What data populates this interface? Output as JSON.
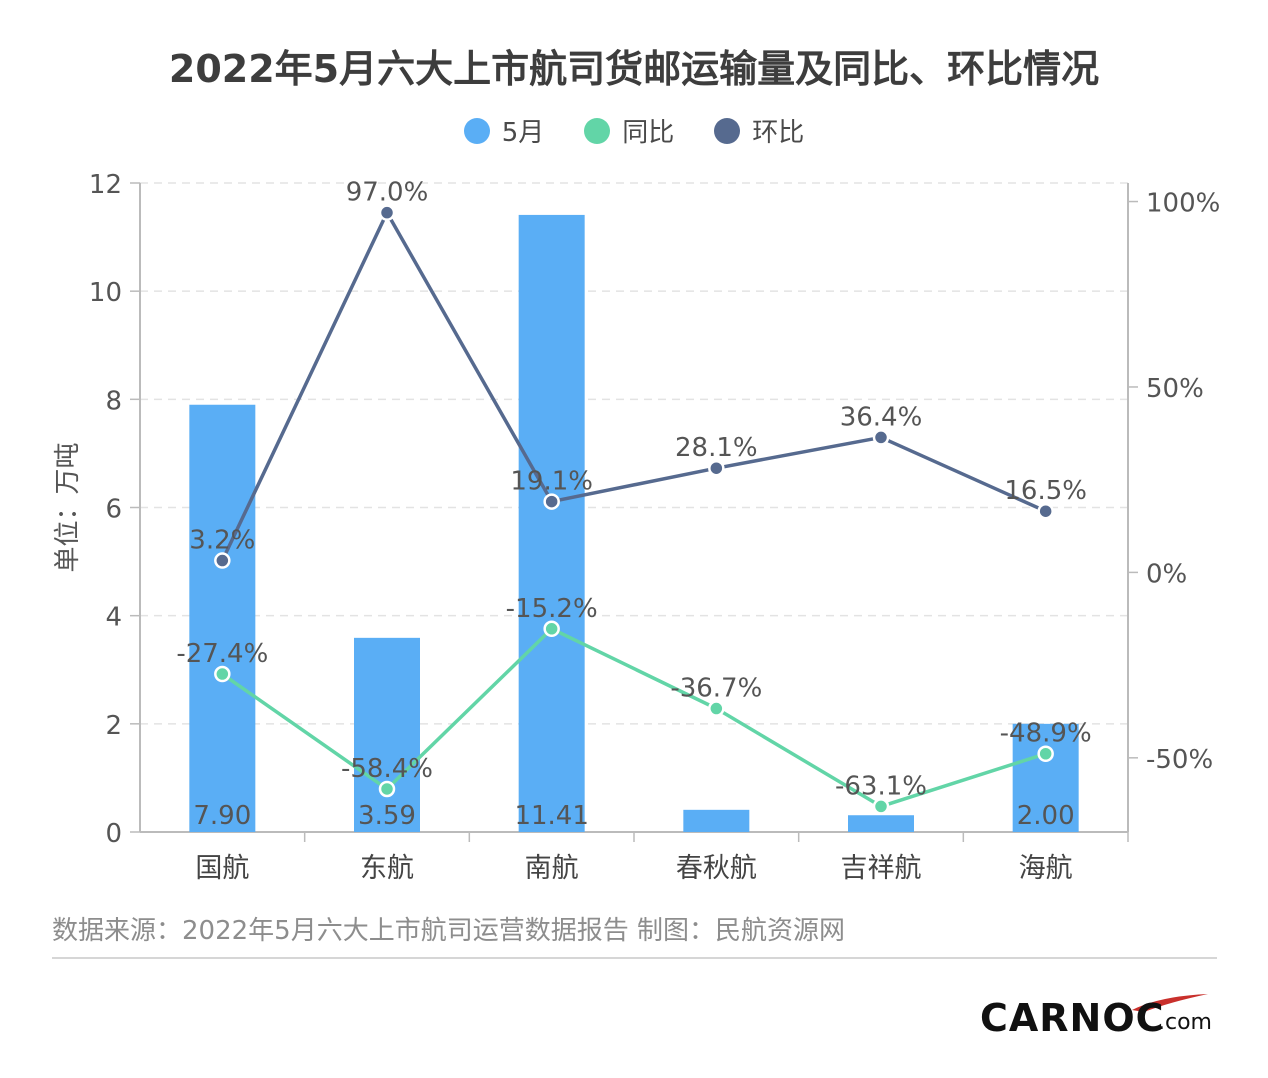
{
  "chart_data": {
    "type": "bar",
    "title": "2022年5月六大上市航司货邮运输量及同比、环比情况",
    "ylabel": "单位：万吨",
    "ylim": [
      0,
      12
    ],
    "y_ticks": [
      "0",
      "2",
      "4",
      "6",
      "8",
      "10",
      "12"
    ],
    "y2lim": [
      -70,
      105
    ],
    "y2_ticks": [
      "100%",
      "50%",
      "0%",
      "-50%"
    ],
    "y2_tick_values": [
      100,
      50,
      0,
      -50
    ],
    "categories": [
      "国航",
      "东航",
      "南航",
      "春秋航",
      "吉祥航",
      "海航"
    ],
    "series": [
      {
        "name": "5月",
        "type": "bar",
        "axis": "left",
        "color": "#5aaef5",
        "values": [
          7.9,
          3.59,
          11.41,
          0.41,
          0.31,
          2.0
        ],
        "labels": [
          "7.90",
          "3.59",
          "11.41",
          "",
          "",
          "2.00"
        ]
      },
      {
        "name": "同比",
        "type": "line",
        "axis": "right",
        "color": "#62d5a7",
        "values": [
          -27.4,
          -58.4,
          -15.2,
          -36.7,
          -63.1,
          -48.9
        ],
        "labels": [
          "-27.4%",
          "-58.4%",
          "-15.2%",
          "-36.7%",
          "-63.1%",
          "-48.9%"
        ]
      },
      {
        "name": "环比",
        "type": "line",
        "axis": "right",
        "color": "#566a8f",
        "values": [
          3.2,
          97.0,
          19.1,
          28.1,
          36.4,
          16.5
        ],
        "labels": [
          "3.2%",
          "97.0%",
          "19.1%",
          "28.1%",
          "36.4%",
          "16.5%"
        ]
      }
    ],
    "grid": true,
    "legend_position": "top-center"
  },
  "source": "数据来源：2022年5月六大上市航司运营数据报告 制图：民航资源网",
  "logo": {
    "main": "CARNOC",
    "suffix": ".com",
    "swoosh_color": "#c9302c"
  }
}
